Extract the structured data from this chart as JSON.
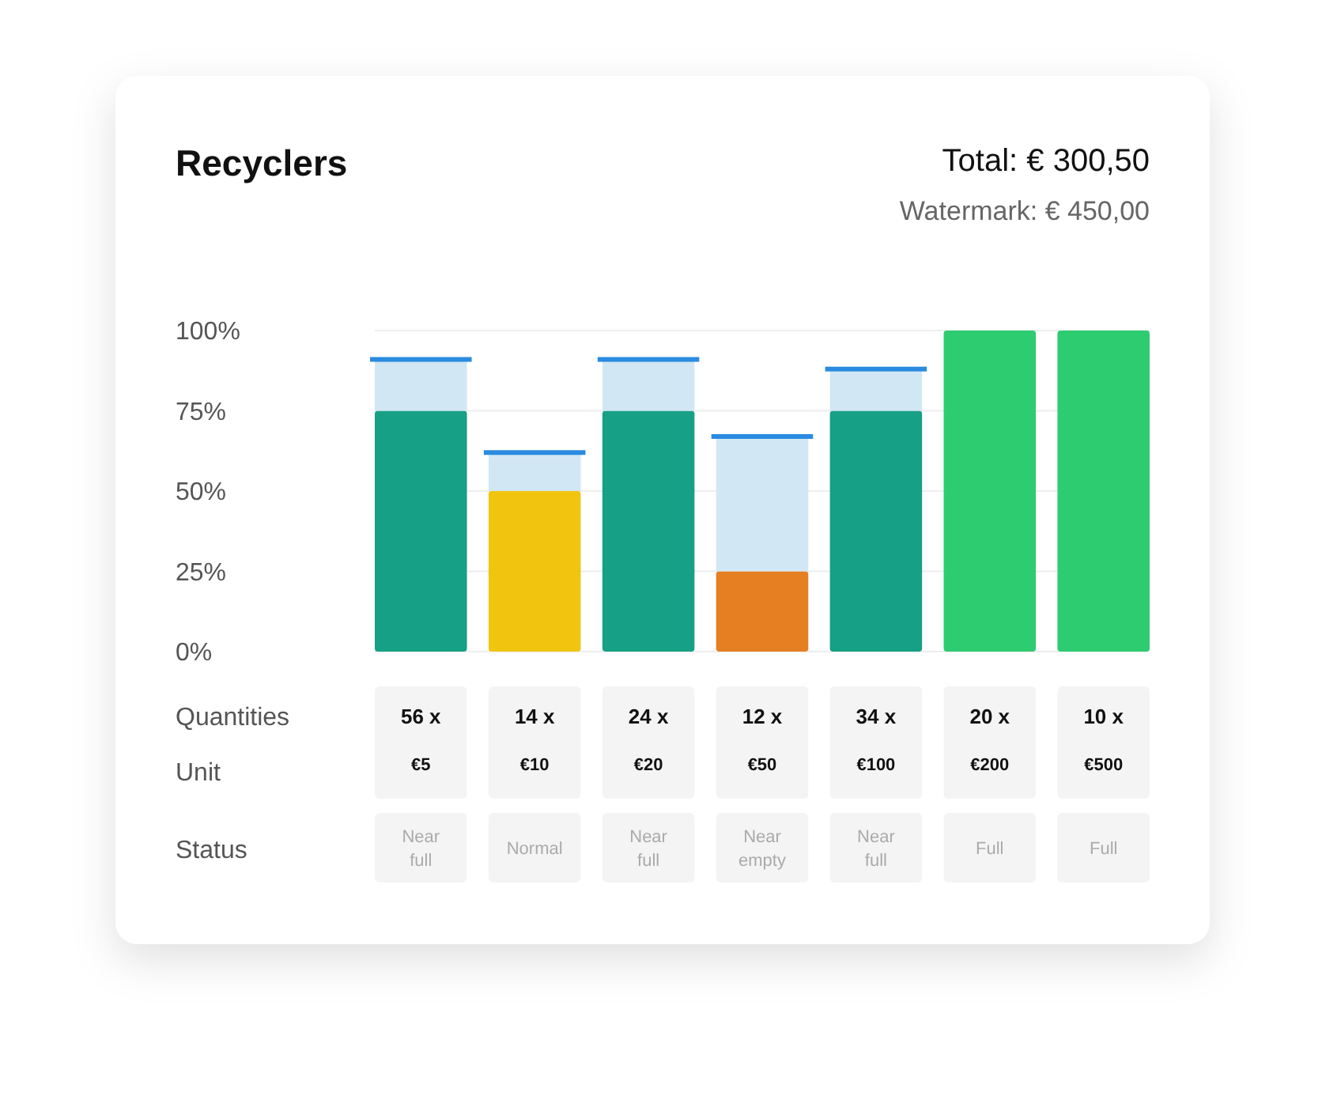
{
  "chart_data": {
    "type": "bar",
    "title": "Recyclers",
    "subtitle": "Total: € 300,50",
    "categories": [
      "€5",
      "€10",
      "€20",
      "€50",
      "€100",
      "€200",
      "€500"
    ],
    "stacked": true,
    "series": [
      {
        "colors": [
          "#16a085",
          "#f1c40f",
          "#16a085",
          "#e67e22",
          "#16a085",
          "#2ecc71",
          "#2ecc71"
        ],
        "values": [
          75,
          50,
          75,
          25,
          75,
          100,
          100
        ]
      },
      {
        "color": "#d2e7f4",
        "values": [
          16,
          12,
          16,
          42,
          13,
          0,
          0
        ]
      }
    ],
    "ylim": [
      0,
      100
    ],
    "yticks": [
      {
        "value": 0,
        "label": "0%"
      },
      {
        "value": 25,
        "label": "25%"
      },
      {
        "value": 50,
        "label": "50%"
      },
      {
        "value": 75,
        "label": "75%"
      },
      {
        "value": 100,
        "label": "100%"
      }
    ],
    "grid": "y",
    "annotations": [
      "Watermark: € 450,00",
      "Quantities",
      "Unit",
      "Status",
      "56 x",
      "14 x",
      "24 x",
      "12 x",
      "34 x",
      "20 x",
      "10 x",
      "Near full",
      "Normal",
      "Near full",
      "Near empty",
      "Near full",
      "Full",
      "Full"
    ]
  }
}
